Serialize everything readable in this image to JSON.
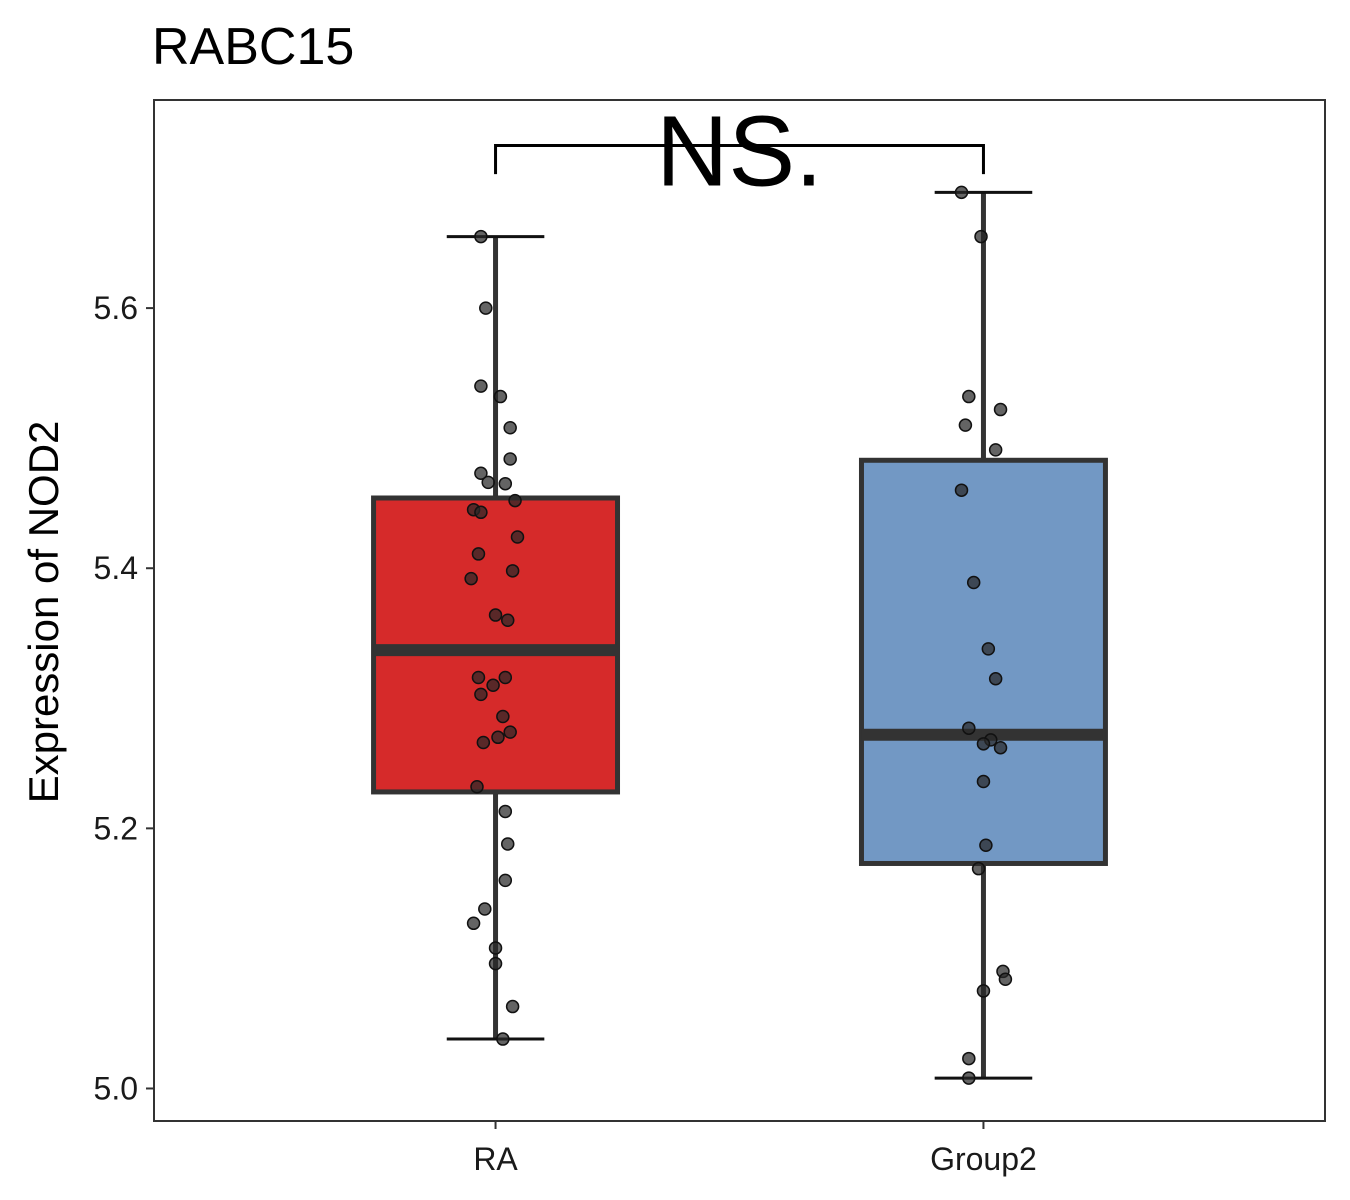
{
  "chart_data": {
    "type": "boxplot",
    "title": "RABC15",
    "xlabel": "",
    "ylabel": "Expression of NOD2",
    "ylim": [
      4.975,
      5.76
    ],
    "yticks": [
      5.0,
      5.2,
      5.4,
      5.6
    ],
    "ytick_labels": [
      "5.0",
      "5.2",
      "5.4",
      "5.6"
    ],
    "categories": [
      "RA",
      "Group2"
    ],
    "significance": {
      "label": "NS.",
      "groups": [
        "RA",
        "Group2"
      ],
      "bracket_y": 5.725,
      "tip_y": 5.703
    },
    "groups": [
      {
        "name": "RA",
        "color": "#d62a2a",
        "min": 5.038,
        "q1": 5.228,
        "median": 5.337,
        "q3": 5.454,
        "max": 5.655,
        "points": [
          {
            "dx": -0.03,
            "y": 5.655
          },
          {
            "dx": -0.02,
            "y": 5.6
          },
          {
            "dx": -0.03,
            "y": 5.54
          },
          {
            "dx": 0.01,
            "y": 5.532
          },
          {
            "dx": 0.03,
            "y": 5.508
          },
          {
            "dx": 0.03,
            "y": 5.484
          },
          {
            "dx": -0.03,
            "y": 5.473
          },
          {
            "dx": -0.015,
            "y": 5.466
          },
          {
            "dx": 0.02,
            "y": 5.465
          },
          {
            "dx": 0.04,
            "y": 5.452
          },
          {
            "dx": -0.045,
            "y": 5.445
          },
          {
            "dx": -0.03,
            "y": 5.443
          },
          {
            "dx": 0.045,
            "y": 5.424
          },
          {
            "dx": -0.035,
            "y": 5.411
          },
          {
            "dx": 0.035,
            "y": 5.398
          },
          {
            "dx": -0.05,
            "y": 5.392
          },
          {
            "dx": 0.0,
            "y": 5.364
          },
          {
            "dx": 0.025,
            "y": 5.36
          },
          {
            "dx": -0.035,
            "y": 5.316
          },
          {
            "dx": 0.02,
            "y": 5.316
          },
          {
            "dx": -0.005,
            "y": 5.31
          },
          {
            "dx": -0.03,
            "y": 5.303
          },
          {
            "dx": 0.015,
            "y": 5.286
          },
          {
            "dx": 0.03,
            "y": 5.274
          },
          {
            "dx": 0.005,
            "y": 5.27
          },
          {
            "dx": -0.025,
            "y": 5.266
          },
          {
            "dx": -0.038,
            "y": 5.232
          },
          {
            "dx": 0.02,
            "y": 5.213
          },
          {
            "dx": 0.025,
            "y": 5.188
          },
          {
            "dx": 0.02,
            "y": 5.16
          },
          {
            "dx": -0.022,
            "y": 5.138
          },
          {
            "dx": -0.045,
            "y": 5.127
          },
          {
            "dx": 0.0,
            "y": 5.108
          },
          {
            "dx": 0.0,
            "y": 5.096
          },
          {
            "dx": 0.035,
            "y": 5.063
          },
          {
            "dx": 0.015,
            "y": 5.038
          }
        ]
      },
      {
        "name": "Group2",
        "color": "#7298c4",
        "min": 5.008,
        "q1": 5.173,
        "median": 5.272,
        "q3": 5.483,
        "max": 5.689,
        "points": [
          {
            "dx": -0.045,
            "y": 5.689
          },
          {
            "dx": -0.005,
            "y": 5.655
          },
          {
            "dx": -0.03,
            "y": 5.532
          },
          {
            "dx": 0.035,
            "y": 5.522
          },
          {
            "dx": -0.037,
            "y": 5.51
          },
          {
            "dx": 0.025,
            "y": 5.491
          },
          {
            "dx": -0.045,
            "y": 5.46
          },
          {
            "dx": -0.02,
            "y": 5.389
          },
          {
            "dx": 0.01,
            "y": 5.338
          },
          {
            "dx": 0.025,
            "y": 5.315
          },
          {
            "dx": -0.03,
            "y": 5.277
          },
          {
            "dx": 0.015,
            "y": 5.268
          },
          {
            "dx": 0.0,
            "y": 5.265
          },
          {
            "dx": 0.035,
            "y": 5.262
          },
          {
            "dx": 0.0,
            "y": 5.236
          },
          {
            "dx": 0.005,
            "y": 5.187
          },
          {
            "dx": -0.01,
            "y": 5.169
          },
          {
            "dx": 0.04,
            "y": 5.09
          },
          {
            "dx": 0.045,
            "y": 5.084
          },
          {
            "dx": 0.0,
            "y": 5.075
          },
          {
            "dx": -0.03,
            "y": 5.023
          },
          {
            "dx": -0.03,
            "y": 5.008
          }
        ]
      }
    ]
  }
}
